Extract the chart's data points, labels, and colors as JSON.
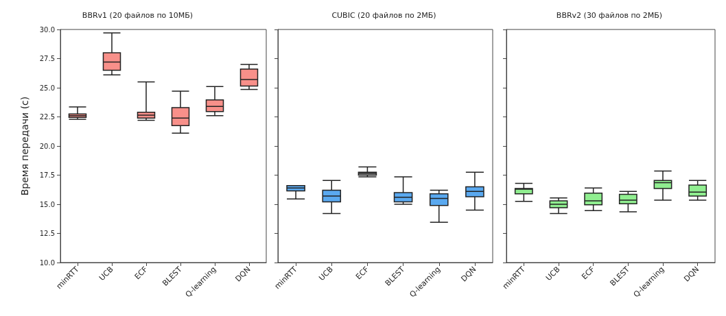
{
  "chart_data": [
    {
      "type": "box",
      "title": "BBRv1 (20 файлов по 10МБ)",
      "ylabel": "Время передачи (с)",
      "categories": [
        "minRTT",
        "UCB",
        "ECF",
        "BLEST",
        "Q-learning",
        "DQN"
      ],
      "color": "#f8908a",
      "ylim": [
        10,
        30
      ],
      "yticks": [
        {
          "value": 10,
          "label": "10.0"
        },
        {
          "value": 12.5,
          "label": "12.5"
        },
        {
          "value": 15,
          "label": "15.0"
        },
        {
          "value": 17.5,
          "label": "17.5"
        },
        {
          "value": 20,
          "label": "20.0"
        },
        {
          "value": 22.5,
          "label": "22.5"
        },
        {
          "value": 25,
          "label": "25.0"
        },
        {
          "value": 27.5,
          "label": "27.5"
        },
        {
          "value": 30,
          "label": "30.0"
        }
      ],
      "grid": false,
      "boxes": [
        {
          "low": 22.3,
          "q1": 22.45,
          "median": 22.6,
          "q3": 22.75,
          "high": 23.35
        },
        {
          "low": 26.1,
          "q1": 26.5,
          "median": 27.2,
          "q3": 28.0,
          "high": 29.7
        },
        {
          "low": 22.2,
          "q1": 22.4,
          "median": 22.65,
          "q3": 22.9,
          "high": 25.5
        },
        {
          "low": 21.1,
          "q1": 21.75,
          "median": 22.4,
          "q3": 23.3,
          "high": 24.7
        },
        {
          "low": 22.6,
          "q1": 22.95,
          "median": 23.4,
          "q3": 23.95,
          "high": 25.1
        },
        {
          "low": 24.85,
          "q1": 25.15,
          "median": 25.7,
          "q3": 26.6,
          "high": 27.0
        }
      ]
    },
    {
      "type": "box",
      "title": "CUBIC (20 файлов по 2МБ)",
      "categories": [
        "minRTT",
        "UCB",
        "ECF",
        "BLEST",
        "Q-learning",
        "DQN"
      ],
      "colors": [
        "#5aa9f0",
        "#5aa9f0",
        "#a8a8a8",
        "#5aa9f0",
        "#5aa9f0",
        "#5aa9f0"
      ],
      "ylim": [
        10,
        30
      ],
      "yticks": [
        10,
        12.5,
        15,
        17.5,
        20,
        22.5,
        25,
        27.5,
        30
      ],
      "tick_labels": "x",
      "grid": false,
      "boxes": [
        {
          "low": 15.45,
          "q1": 16.15,
          "median": 16.4,
          "q3": 16.6,
          "high": 16.6
        },
        {
          "low": 14.2,
          "q1": 15.2,
          "median": 15.7,
          "q3": 16.2,
          "high": 17.05
        },
        {
          "low": 17.35,
          "q1": 17.5,
          "median": 17.65,
          "q3": 17.75,
          "high": 18.2
        },
        {
          "low": 15.0,
          "q1": 15.2,
          "median": 15.6,
          "q3": 16.0,
          "high": 17.35
        },
        {
          "low": 13.45,
          "q1": 14.9,
          "median": 15.5,
          "q3": 15.9,
          "high": 16.2
        },
        {
          "low": 14.5,
          "q1": 15.65,
          "median": 16.1,
          "q3": 16.5,
          "high": 17.75
        }
      ]
    },
    {
      "type": "box",
      "title": "BBRv2 (30 файлов по 2МБ)",
      "categories": [
        "minRTT",
        "UCB",
        "ECF",
        "BLEST",
        "Q-learning",
        "DQN"
      ],
      "color": "#90ee90",
      "ylim": [
        10,
        30
      ],
      "yticks": [
        10,
        12.5,
        15,
        17.5,
        20,
        22.5,
        25,
        27.5,
        30
      ],
      "tick_labels": "x",
      "grid": false,
      "boxes": [
        {
          "low": 15.25,
          "q1": 15.9,
          "median": 16.3,
          "q3": 16.35,
          "high": 16.8
        },
        {
          "low": 14.2,
          "q1": 14.7,
          "median": 15.0,
          "q3": 15.3,
          "high": 15.55
        },
        {
          "low": 14.45,
          "q1": 14.95,
          "median": 15.3,
          "q3": 15.95,
          "high": 16.4
        },
        {
          "low": 14.35,
          "q1": 15.05,
          "median": 15.35,
          "q3": 15.85,
          "high": 16.1
        },
        {
          "low": 15.35,
          "q1": 16.35,
          "median": 16.85,
          "q3": 17.05,
          "high": 17.85
        },
        {
          "low": 15.35,
          "q1": 15.7,
          "median": 16.05,
          "q3": 16.65,
          "high": 17.05
        }
      ]
    }
  ]
}
